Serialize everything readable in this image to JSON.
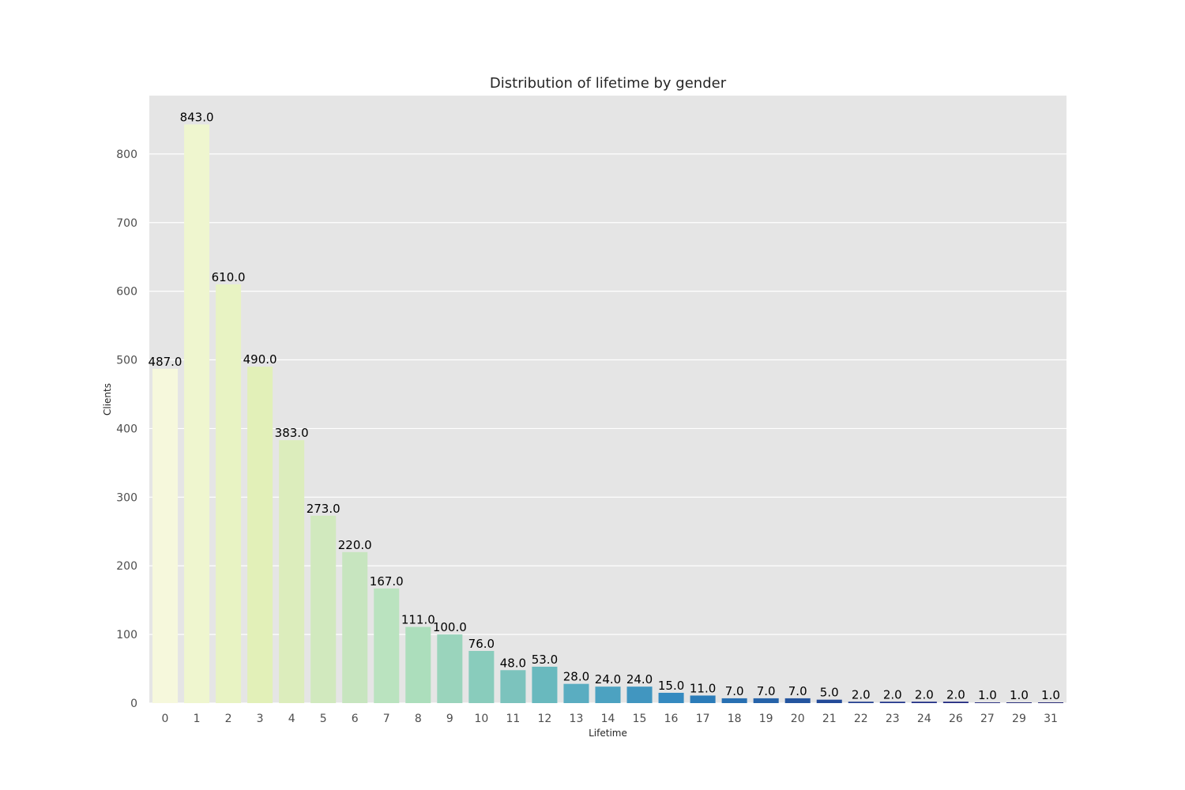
{
  "chart_data": {
    "type": "bar",
    "title": "Distribution of lifetime by gender",
    "xlabel": "Lifetime",
    "ylabel": "Clients",
    "categories": [
      "0",
      "1",
      "2",
      "3",
      "4",
      "5",
      "6",
      "7",
      "8",
      "9",
      "10",
      "11",
      "12",
      "13",
      "14",
      "15",
      "16",
      "17",
      "18",
      "19",
      "20",
      "21",
      "22",
      "23",
      "24",
      "26",
      "27",
      "29",
      "31"
    ],
    "values": [
      487,
      843,
      610,
      490,
      383,
      273,
      220,
      167,
      111,
      100,
      76,
      48,
      53,
      28,
      24,
      24,
      15,
      11,
      7,
      7,
      7,
      5,
      2,
      2,
      2,
      2,
      1,
      1,
      1
    ],
    "value_labels": [
      "487.0",
      "843.0",
      "610.0",
      "490.0",
      "383.0",
      "273.0",
      "220.0",
      "167.0",
      "111.0",
      "100.0",
      "76.0",
      "48.0",
      "53.0",
      "28.0",
      "24.0",
      "24.0",
      "15.0",
      "11.0",
      "7.0",
      "7.0",
      "7.0",
      "5.0",
      "2.0",
      "2.0",
      "2.0",
      "2.0",
      "1.0",
      "1.0",
      "1.0"
    ],
    "yticks": [
      0,
      100,
      200,
      300,
      400,
      500,
      600,
      700,
      800
    ],
    "ylim": [
      0,
      885
    ],
    "grid": true,
    "colors": [
      "#f6f8dc",
      "#eff6cf",
      "#e8f3c3",
      "#e2f0b8",
      "#dcedbc",
      "#d1e9be",
      "#c7e5bf",
      "#bae3bf",
      "#acdebc",
      "#9ad4bc",
      "#89ccbc",
      "#7cc3bd",
      "#69b9be",
      "#5aadc1",
      "#4ca2c1",
      "#4196c0",
      "#358ac0",
      "#2b7cb9",
      "#2870b2",
      "#2663a9",
      "#24559f",
      "#234a98",
      "#223f90",
      "#20358a",
      "#1e2c84",
      "#1c247d",
      "#161e75",
      "#12186d",
      "#0f1366"
    ],
    "background": "#e5e5e5"
  }
}
